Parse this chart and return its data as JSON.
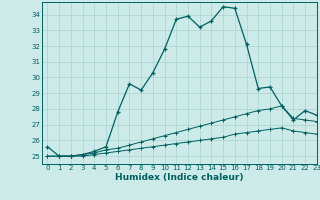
{
  "title": "",
  "xlabel": "Humidex (Indice chaleur)",
  "ylabel": "",
  "xlim": [
    -0.5,
    23
  ],
  "ylim": [
    24.5,
    34.8
  ],
  "yticks": [
    25,
    26,
    27,
    28,
    29,
    30,
    31,
    32,
    33,
    34
  ],
  "xticks": [
    0,
    1,
    2,
    3,
    4,
    5,
    6,
    7,
    8,
    9,
    10,
    11,
    12,
    13,
    14,
    15,
    16,
    17,
    18,
    19,
    20,
    21,
    22,
    23
  ],
  "bg_color": "#cceae8",
  "grid_color": "#aad4d0",
  "line_color": "#006060",
  "series1_x": [
    0,
    1,
    2,
    3,
    4,
    5,
    6,
    7,
    8,
    9,
    10,
    11,
    12,
    13,
    14,
    15,
    16,
    17,
    18,
    19,
    20,
    21,
    22,
    23
  ],
  "series1_y": [
    25.6,
    25.0,
    25.0,
    25.1,
    25.3,
    25.6,
    27.8,
    29.6,
    29.2,
    30.3,
    31.8,
    33.7,
    33.9,
    33.2,
    33.6,
    34.5,
    34.4,
    32.1,
    29.3,
    29.4,
    28.2,
    27.3,
    27.9,
    27.6
  ],
  "series2_x": [
    0,
    1,
    2,
    3,
    4,
    5,
    6,
    7,
    8,
    9,
    10,
    11,
    12,
    13,
    14,
    15,
    16,
    17,
    18,
    19,
    20,
    21,
    22,
    23
  ],
  "series2_y": [
    25.0,
    25.0,
    25.0,
    25.1,
    25.2,
    25.4,
    25.5,
    25.7,
    25.9,
    26.1,
    26.3,
    26.5,
    26.7,
    26.9,
    27.1,
    27.3,
    27.5,
    27.7,
    27.9,
    28.0,
    28.2,
    27.4,
    27.3,
    27.2
  ],
  "series3_x": [
    0,
    1,
    2,
    3,
    4,
    5,
    6,
    7,
    8,
    9,
    10,
    11,
    12,
    13,
    14,
    15,
    16,
    17,
    18,
    19,
    20,
    21,
    22,
    23
  ],
  "series3_y": [
    25.0,
    25.0,
    25.0,
    25.0,
    25.1,
    25.2,
    25.3,
    25.4,
    25.5,
    25.6,
    25.7,
    25.8,
    25.9,
    26.0,
    26.1,
    26.2,
    26.4,
    26.5,
    26.6,
    26.7,
    26.8,
    26.6,
    26.5,
    26.4
  ]
}
